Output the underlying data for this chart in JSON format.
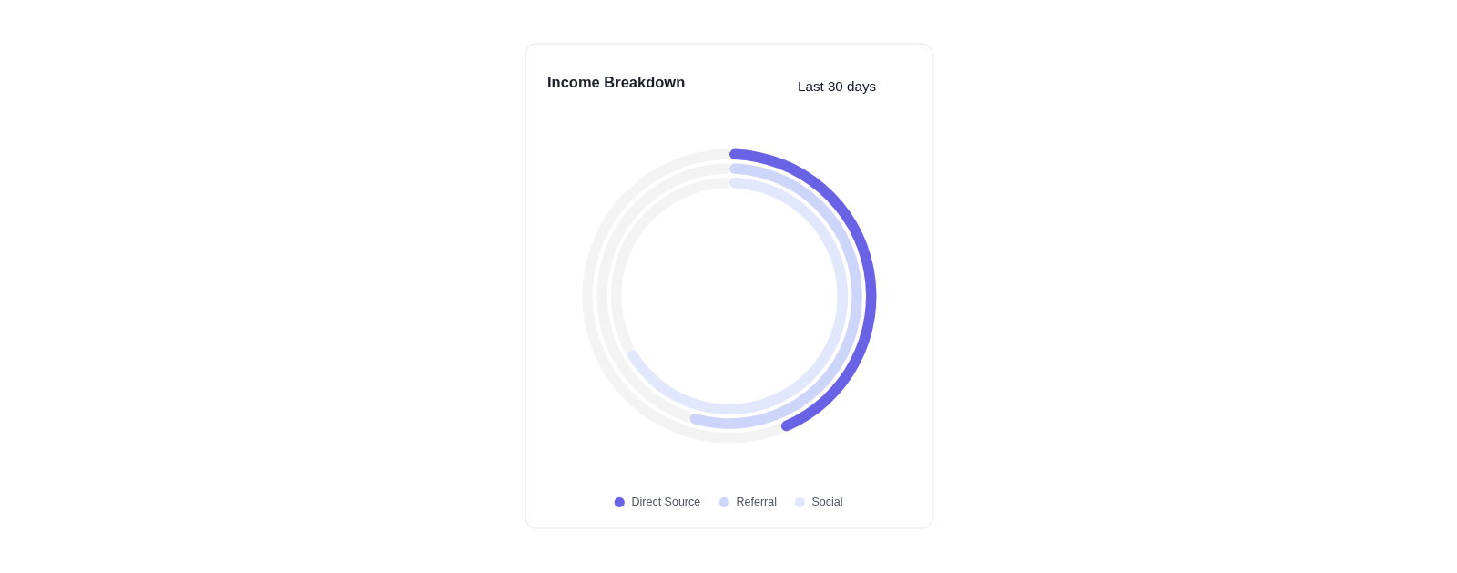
{
  "chart_data": {
    "type": "donut",
    "title": "Income Breakdown",
    "annotations": [
      "Last 30 days"
    ],
    "categories": [
      null,
      null
    ],
    "colors": [
      null,
      "#f3f3f3"
    ],
    "series": [
      {
        "name": "Direct Source",
        "color": "#6a62e5",
        "values": [
          44,
          56
        ]
      },
      {
        "name": "Referral",
        "color": "#cdd6fa",
        "values": [
          55,
          45
        ]
      },
      {
        "name": "Social",
        "color": "#e1e7fc",
        "values": [
          67,
          33
        ]
      }
    ],
    "legend": "bottom"
  }
}
